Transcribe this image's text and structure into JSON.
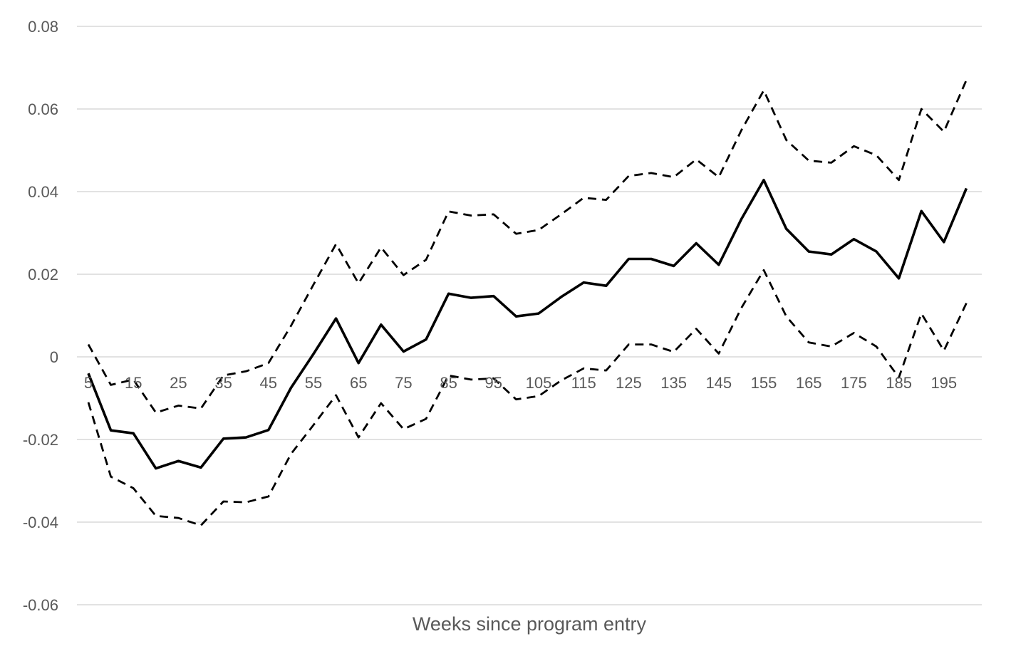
{
  "chart_data": {
    "type": "line",
    "title": "",
    "xlabel": "Weeks since program entry",
    "ylabel": "",
    "ylim": [
      -0.06,
      0.08
    ],
    "yticks": [
      0.08,
      0.06,
      0.04,
      0.02,
      0,
      -0.02,
      -0.04,
      -0.06
    ],
    "ytick_labels": [
      "0.08",
      "0.06",
      "0.04",
      "0.02",
      "0",
      "-0.02",
      "-0.04",
      "-0.06"
    ],
    "xtick_labels": [
      "5",
      "15",
      "25",
      "35",
      "45",
      "55",
      "65",
      "75",
      "85",
      "95",
      "105",
      "115",
      "125",
      "135",
      "145",
      "155",
      "165",
      "175",
      "185",
      "195"
    ],
    "grid": true,
    "legend": "none",
    "x": [
      5,
      10,
      15,
      20,
      25,
      30,
      35,
      40,
      45,
      50,
      55,
      60,
      65,
      70,
      75,
      80,
      85,
      90,
      95,
      100,
      105,
      110,
      115,
      120,
      125,
      130,
      135,
      140,
      145,
      150,
      155,
      160,
      165,
      170,
      175,
      180,
      185,
      190,
      195,
      200
    ],
    "series": [
      {
        "style": "solid",
        "color": "#000000",
        "values": [
          -0.004,
          -0.0178,
          -0.0185,
          -0.027,
          -0.0252,
          -0.0268,
          -0.0198,
          -0.0195,
          -0.0177,
          -0.0075,
          0.0007,
          0.0093,
          -0.0015,
          0.0078,
          0.0013,
          0.0042,
          0.0153,
          0.0143,
          0.0147,
          0.0098,
          0.0105,
          0.0145,
          0.018,
          0.0172,
          0.0237,
          0.0237,
          0.022,
          0.0275,
          0.0223,
          0.0333,
          0.0428,
          0.031,
          0.0255,
          0.0248,
          0.0285,
          0.0255,
          0.019,
          0.0353,
          0.0278,
          0.0408
        ]
      },
      {
        "style": "dashed",
        "color": "#000000",
        "values": [
          0.003,
          -0.0068,
          -0.0055,
          -0.0135,
          -0.0118,
          -0.0125,
          -0.0045,
          -0.0035,
          -0.0015,
          0.0075,
          0.0175,
          0.0273,
          0.0178,
          0.0265,
          0.0198,
          0.0235,
          0.0352,
          0.0342,
          0.0345,
          0.0298,
          0.0307,
          0.0345,
          0.0385,
          0.038,
          0.0438,
          0.0445,
          0.0435,
          0.0478,
          0.0435,
          0.0548,
          0.0645,
          0.0525,
          0.0475,
          0.047,
          0.051,
          0.0488,
          0.0428,
          0.06,
          0.0545,
          0.067
        ]
      },
      {
        "style": "dashed",
        "color": "#000000",
        "values": [
          -0.011,
          -0.029,
          -0.0318,
          -0.0385,
          -0.039,
          -0.0408,
          -0.035,
          -0.0352,
          -0.0338,
          -0.0235,
          -0.0165,
          -0.0093,
          -0.0195,
          -0.0112,
          -0.0175,
          -0.015,
          -0.0045,
          -0.0055,
          -0.0052,
          -0.0103,
          -0.0095,
          -0.0057,
          -0.0028,
          -0.0033,
          0.003,
          0.003,
          0.0012,
          0.0068,
          0.0008,
          0.0118,
          0.021,
          0.0098,
          0.0035,
          0.0025,
          0.0058,
          0.0025,
          -0.005,
          0.0105,
          0.0015,
          0.013
        ]
      }
    ]
  }
}
